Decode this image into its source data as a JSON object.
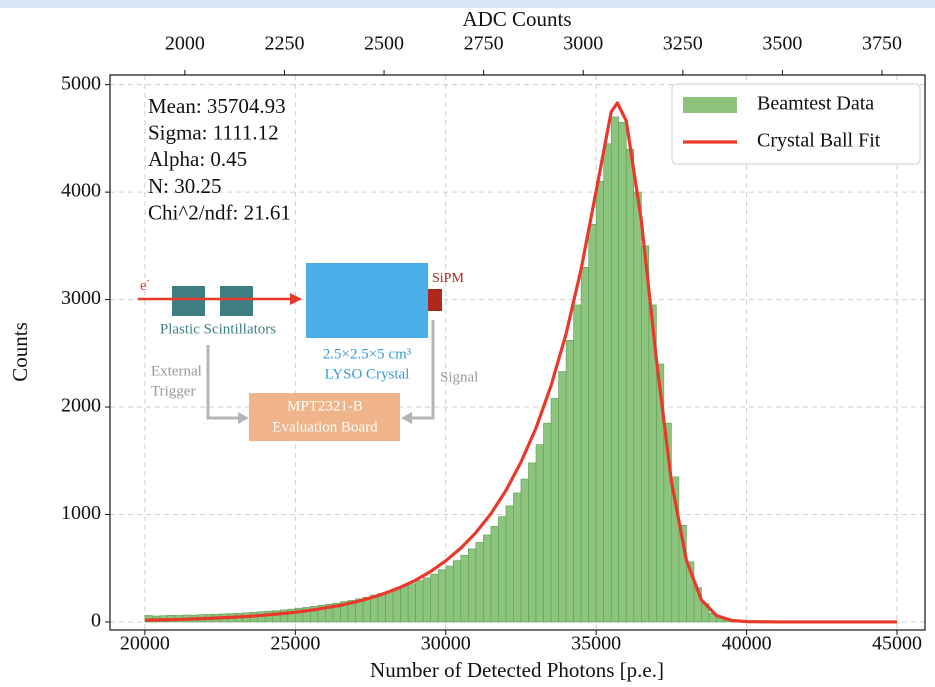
{
  "chart_data": {
    "type": "histogram",
    "xlabel": "Number of Detected Photons [p.e.]",
    "ylabel": "Counts",
    "x2label": "ADC Counts",
    "xlim": [
      18840,
      45930
    ],
    "xticks": [
      20000,
      25000,
      30000,
      35000,
      40000,
      45000
    ],
    "x2lim": [
      1812,
      3858
    ],
    "x2ticks": [
      2000,
      2250,
      2500,
      2750,
      3000,
      3250,
      3500,
      3750
    ],
    "ylim": [
      -75,
      5090
    ],
    "yticks": [
      0,
      1000,
      2000,
      3000,
      4000,
      5000
    ],
    "grid": true,
    "legend": "upper right",
    "bins": [
      20000,
      20250,
      20500,
      20750,
      21000,
      21250,
      21500,
      21750,
      22000,
      22250,
      22500,
      22750,
      23000,
      23250,
      23500,
      23750,
      24000,
      24250,
      24500,
      24750,
      25000,
      25250,
      25500,
      25750,
      26000,
      26250,
      26500,
      26750,
      27000,
      27250,
      27500,
      27750,
      28000,
      28250,
      28500,
      28750,
      29000,
      29250,
      29500,
      29750,
      30000,
      30250,
      30500,
      30750,
      31000,
      31250,
      31500,
      31750,
      32000,
      32250,
      32500,
      32750,
      33000,
      33250,
      33500,
      33750,
      34000,
      34250,
      34500,
      34750,
      35000,
      35250,
      35500,
      35750,
      36000,
      36250,
      36500,
      36750,
      37000,
      37250,
      37500,
      37750,
      38000,
      38250,
      38500,
      38750,
      39000,
      39250,
      39500,
      39750,
      40000
    ],
    "series": [
      {
        "name": "Beamtest Data",
        "color": "#8cc47e",
        "edge_color": "#5e9c54",
        "values": [
          60,
          55,
          58,
          62,
          60,
          65,
          63,
          68,
          70,
          72,
          75,
          78,
          80,
          85,
          90,
          95,
          100,
          105,
          112,
          120,
          128,
          135,
          145,
          155,
          165,
          175,
          190,
          200,
          215,
          230,
          250,
          265,
          285,
          305,
          330,
          355,
          385,
          410,
          445,
          485,
          520,
          570,
          620,
          680,
          740,
          810,
          890,
          980,
          1080,
          1200,
          1330,
          1480,
          1650,
          1850,
          2080,
          2330,
          2620,
          2950,
          3300,
          3700,
          4100,
          4450,
          4700,
          4650,
          4400,
          4000,
          3500,
          2950,
          2400,
          1850,
          1350,
          900,
          560,
          320,
          170,
          80,
          35,
          15,
          5,
          2
        ]
      },
      {
        "name": "Crystal Ball Fit",
        "type": "line",
        "color": "#e8392b",
        "x": [
          20000,
          20500,
          21000,
          21500,
          22000,
          22500,
          23000,
          23500,
          24000,
          24500,
          25000,
          25500,
          26000,
          26500,
          27000,
          27500,
          28000,
          28500,
          29000,
          29500,
          30000,
          30500,
          31000,
          31500,
          32000,
          32500,
          33000,
          33500,
          34000,
          34500,
          35000,
          35500,
          35705,
          36000,
          36500,
          37000,
          37500,
          38000,
          38500,
          39000,
          39500,
          40000,
          41000,
          42000,
          43000,
          44000,
          45000
        ],
        "values": [
          16,
          19,
          22,
          27,
          32,
          38,
          45,
          53,
          64,
          76,
          90,
          108,
          130,
          155,
          186,
          223,
          269,
          323,
          389,
          470,
          569,
          687,
          830,
          1007,
          1223,
          1487,
          1804,
          2198,
          2681,
          3284,
          4010,
          4748,
          4830,
          4663,
          3739,
          2449,
          1309,
          572,
          204,
          59,
          14,
          3,
          0,
          0,
          0,
          0,
          0
        ]
      }
    ],
    "annotations": [
      "Mean: 35704.93",
      "Sigma: 1111.12",
      "Alpha: 0.45",
      "N: 30.25",
      "Chi^2/ndf: 21.61"
    ],
    "inset": {
      "particle": "e",
      "particle_sup": "-",
      "sipm": "SiPM",
      "scintillators": "Plastic Scintillators",
      "crystal_size": "2.5×2.5×5 cm³",
      "crystal": "LYSO Crystal",
      "trigger": [
        "External",
        "Trigger"
      ],
      "signal": "Signal",
      "board": [
        "MPT2321-B",
        "Evaluation Board"
      ]
    }
  }
}
